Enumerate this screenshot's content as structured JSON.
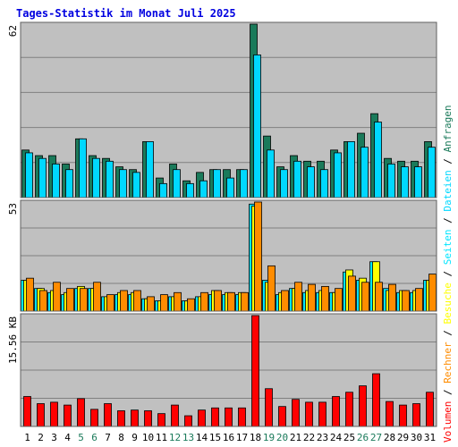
{
  "chart_data": {
    "type": "bar",
    "title": "Tages-Statistik im Monat Juli 2025",
    "categories": [
      "1",
      "2",
      "3",
      "4",
      "5",
      "6",
      "7",
      "8",
      "9",
      "10",
      "11",
      "12",
      "13",
      "14",
      "15",
      "16",
      "17",
      "18",
      "19",
      "20",
      "21",
      "22",
      "23",
      "24",
      "25",
      "26",
      "27",
      "28",
      "29",
      "30",
      "31"
    ],
    "weekend_days": [
      "5",
      "6",
      "12",
      "13",
      "19",
      "20",
      "26",
      "27"
    ],
    "panels": [
      {
        "id": "top",
        "max_label": "62",
        "ylim": [
          0,
          62
        ],
        "series": [
          {
            "name": "Anfragen",
            "color": "#1a7a5a",
            "values": [
              17,
              15,
              15,
              12,
              21,
              15,
              14,
              11,
              10,
              20,
              7,
              12,
              6,
              9,
              10,
              10,
              10,
              62,
              22,
              11,
              15,
              13,
              13,
              17,
              20,
              23,
              30,
              14,
              13,
              13,
              20
            ]
          },
          {
            "name": "Dateien",
            "color": "#00d8ff",
            "values": [
              16,
              14,
              12,
              10,
              21,
              14,
              13,
              10,
              9,
              20,
              5,
              10,
              5,
              6,
              10,
              7,
              10,
              51,
              17,
              10,
              13,
              11,
              10,
              16,
              20,
              18,
              27,
              12,
              11,
              11,
              18
            ]
          }
        ]
      },
      {
        "id": "middle",
        "max_label": "53",
        "ylim": [
          0,
          53
        ],
        "series": [
          {
            "name": "Seiten",
            "color": "#00e5ff",
            "values": [
              15,
              11,
              9,
              8,
              11,
              11,
              7,
              8,
              8,
              6,
              5,
              7,
              5,
              7,
              8,
              8,
              8,
              52,
              15,
              8,
              11,
              9,
              9,
              9,
              19,
              15,
              24,
              11,
              9,
              9,
              15
            ]
          },
          {
            "name": "Besuche",
            "color": "#ffff00",
            "values": [
              15,
              11,
              10,
              9,
              12,
              11,
              7,
              9,
              9,
              6,
              5,
              7,
              5,
              7,
              10,
              9,
              9,
              51,
              14,
              9,
              11,
              10,
              10,
              9,
              20,
              16,
              24,
              10,
              10,
              10,
              15
            ]
          },
          {
            "name": "Rechner",
            "color": "#ff8c00",
            "values": [
              16,
              10,
              14,
              11,
              11,
              14,
              8,
              10,
              10,
              7,
              8,
              9,
              6,
              9,
              10,
              9,
              9,
              53,
              22,
              10,
              14,
              13,
              12,
              11,
              17,
              14,
              14,
              13,
              10,
              11,
              18
            ]
          }
        ]
      },
      {
        "id": "bottom",
        "max_label": "15.56 KB",
        "ylim": [
          0,
          15.56
        ],
        "series": [
          {
            "name": "Volumen",
            "color": "#ff0000",
            "values": [
              4.2,
              3.2,
              3.4,
              3.0,
              3.9,
              2.4,
              3.2,
              2.2,
              2.3,
              2.2,
              1.8,
              3.0,
              1.5,
              2.3,
              2.6,
              2.6,
              2.6,
              15.56,
              5.3,
              2.8,
              3.8,
              3.4,
              3.4,
              4.2,
              4.8,
              5.7,
              7.4,
              3.5,
              3.0,
              3.2,
              4.8
            ]
          }
        ]
      }
    ],
    "side_label": [
      "Volumen",
      "Rechner",
      "Besuche",
      "Seiten",
      "Dateien",
      "Anfragen"
    ],
    "separator": " / ",
    "colors": {
      "plot_bg": "#c0c0c0",
      "gridline": "#808080",
      "frame": "#808080",
      "weekday_text": "#000000",
      "weekend_text": "#1a7a5a",
      "max_label_text": "#000000"
    }
  }
}
